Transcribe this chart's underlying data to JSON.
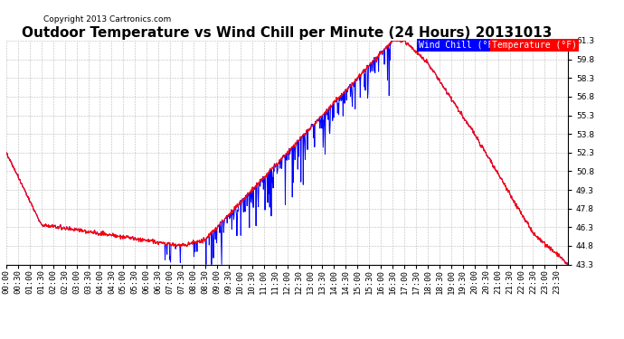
{
  "title": "Outdoor Temperature vs Wind Chill per Minute (24 Hours) 20131013",
  "copyright": "Copyright 2013 Cartronics.com",
  "yticks": [
    43.3,
    44.8,
    46.3,
    47.8,
    49.3,
    50.8,
    52.3,
    53.8,
    55.3,
    56.8,
    58.3,
    59.8,
    61.3
  ],
  "ymin": 43.3,
  "ymax": 61.3,
  "temp_color": "red",
  "windchill_color": "blue",
  "background_color": "white",
  "grid_color": "#bbbbbb",
  "title_fontsize": 11,
  "tick_fontsize": 6.5,
  "n_minutes": 1440,
  "tick_step": 30
}
